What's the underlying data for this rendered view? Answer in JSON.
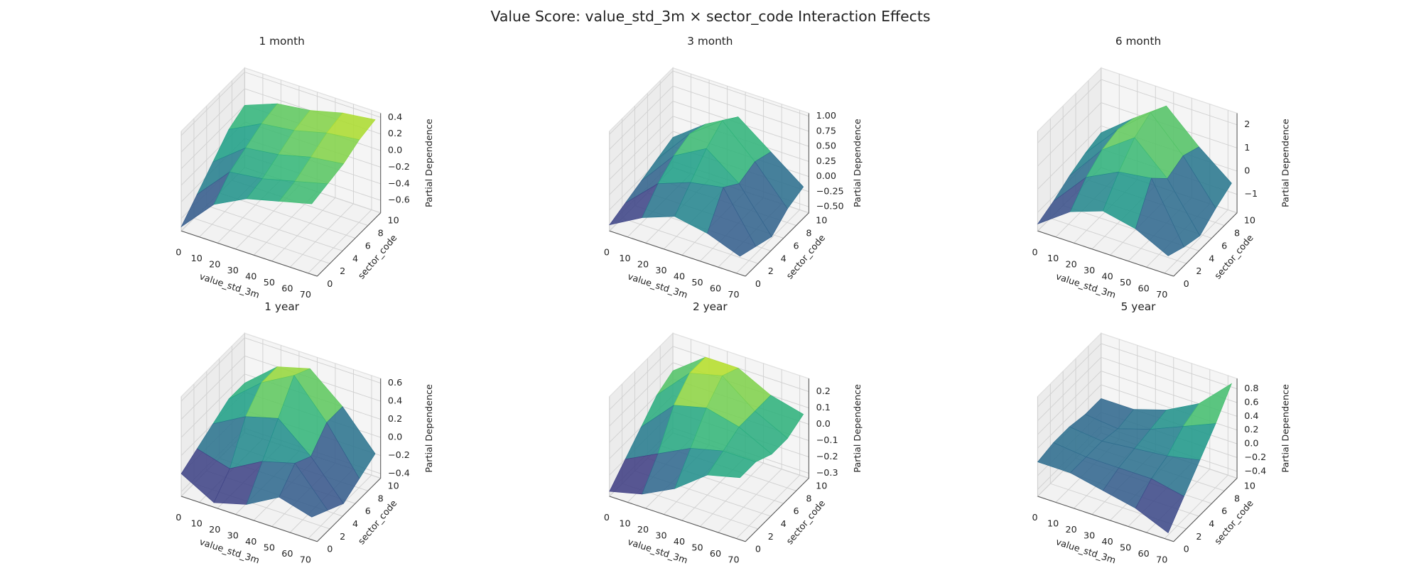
{
  "title": "Value Score: value_std_3m × sector_code Interaction Effects",
  "chart_data": [
    {
      "type": "surface3d",
      "title": "1 month",
      "xlabel": "value_std_3m",
      "ylabel": "sector_code",
      "zlabel": "Partial Dependence",
      "colormap": "viridis",
      "xlim": [
        0,
        75
      ],
      "ylim": [
        0,
        10
      ],
      "zlim": [
        -0.75,
        0.45
      ],
      "xticks": [
        0,
        10,
        20,
        30,
        40,
        50,
        60,
        70
      ],
      "yticks": [
        0,
        2,
        4,
        6,
        8,
        10
      ],
      "zticks": [
        {
          "value": -0.6,
          "label": "−0.6"
        },
        {
          "value": -0.4,
          "label": "−0.4"
        },
        {
          "value": -0.2,
          "label": "−0.2"
        },
        {
          "value": 0,
          "label": "0.0"
        },
        0.2,
        0.4
      ],
      "x": [
        0,
        18,
        36,
        54,
        72
      ],
      "y": [
        0,
        2.5,
        5,
        7.5,
        10
      ],
      "z": [
        [
          -0.7,
          -0.3,
          -0.1,
          0.0,
          0.1
        ],
        [
          -0.5,
          -0.1,
          -0.05,
          0.05,
          0.15
        ],
        [
          -0.3,
          0.0,
          0.05,
          0.15,
          0.2
        ],
        [
          -0.1,
          0.1,
          0.15,
          0.25,
          0.3
        ],
        [
          0.0,
          0.15,
          0.2,
          0.3,
          0.35
        ]
      ]
    },
    {
      "type": "surface3d",
      "title": "3 month",
      "xlabel": "value_std_3m",
      "ylabel": "sector_code",
      "zlabel": "Partial Dependence",
      "colormap": "viridis",
      "xlim": [
        0,
        75
      ],
      "ylim": [
        0,
        10
      ],
      "zlim": [
        -0.6,
        1.05
      ],
      "xticks": [
        0,
        10,
        20,
        30,
        40,
        50,
        60,
        70
      ],
      "yticks": [
        0,
        2,
        4,
        6,
        8,
        10
      ],
      "zticks": [
        {
          "value": -0.5,
          "label": "−0.50"
        },
        {
          "value": -0.25,
          "label": "−0.25"
        },
        {
          "value": 0,
          "label": "0.00"
        },
        0.25,
        {
          "value": 0.5,
          "label": "0.50"
        },
        0.75,
        {
          "value": 1,
          "label": "1.00"
        }
      ],
      "x": [
        0,
        18,
        36,
        54,
        72
      ],
      "y": [
        0,
        2.5,
        5,
        7.5,
        10
      ],
      "z": [
        [
          -0.5,
          -0.2,
          0.0,
          -0.1,
          -0.3
        ],
        [
          -0.4,
          0.1,
          0.3,
          0.4,
          -0.4
        ],
        [
          -0.3,
          0.3,
          0.6,
          0.2,
          -0.5
        ],
        [
          -0.2,
          0.4,
          0.8,
          0.3,
          -0.3
        ],
        [
          -0.1,
          0.3,
          0.6,
          0.2,
          -0.2
        ]
      ]
    },
    {
      "type": "surface3d",
      "title": "6 month",
      "xlabel": "value_std_3m",
      "ylabel": "sector_code",
      "zlabel": "Partial Dependence",
      "colormap": "viridis",
      "xlim": [
        0,
        75
      ],
      "ylim": [
        0,
        10
      ],
      "zlim": [
        -1.8,
        2.5
      ],
      "xticks": [
        0,
        10,
        20,
        30,
        40,
        50,
        60,
        70
      ],
      "yticks": [
        0,
        2,
        4,
        6,
        8,
        10
      ],
      "zticks": [
        {
          "value": -1,
          "label": "−1"
        },
        0,
        1,
        2
      ],
      "x": [
        0,
        18,
        36,
        54,
        72
      ],
      "y": [
        0,
        2.5,
        5,
        7.5,
        10
      ],
      "z": [
        [
          -1.5,
          -0.5,
          0.0,
          -0.3,
          -1.0
        ],
        [
          -1.2,
          0.3,
          1.0,
          1.2,
          -1.3
        ],
        [
          -0.8,
          0.8,
          1.8,
          0.5,
          -1.5
        ],
        [
          -0.5,
          1.0,
          2.2,
          0.8,
          -1.0
        ],
        [
          -0.3,
          0.8,
          1.8,
          0.5,
          -0.6
        ]
      ]
    },
    {
      "type": "surface3d",
      "title": "1 year",
      "xlabel": "value_std_3m",
      "ylabel": "sector_code",
      "zlabel": "Partial Dependence",
      "colormap": "viridis",
      "xlim": [
        0,
        75
      ],
      "ylim": [
        0,
        10
      ],
      "zlim": [
        -0.45,
        0.65
      ],
      "xticks": [
        0,
        10,
        20,
        30,
        40,
        50,
        60,
        70
      ],
      "yticks": [
        0,
        2,
        4,
        6,
        8,
        10
      ],
      "zticks": [
        {
          "value": -0.4,
          "label": "−0.4"
        },
        {
          "value": -0.2,
          "label": "−0.2"
        },
        {
          "value": 0,
          "label": "0.0"
        },
        0.2,
        0.4,
        0.6
      ],
      "x": [
        0,
        18,
        36,
        54,
        72
      ],
      "y": [
        0,
        2.5,
        5,
        7.5,
        10
      ],
      "z": [
        [
          -0.2,
          -0.4,
          -0.3,
          -0.1,
          -0.2
        ],
        [
          -0.1,
          -0.2,
          0.0,
          0.1,
          -0.3
        ],
        [
          0.0,
          0.2,
          0.3,
          0.0,
          -0.4
        ],
        [
          0.1,
          0.4,
          0.6,
          0.2,
          -0.3
        ],
        [
          0.1,
          0.4,
          0.5,
          0.2,
          -0.2
        ]
      ]
    },
    {
      "type": "surface3d",
      "title": "2 year",
      "xlabel": "value_std_3m",
      "ylabel": "sector_code",
      "zlabel": "Partial Dependence",
      "colormap": "viridis",
      "xlim": [
        0,
        75
      ],
      "ylim": [
        0,
        10
      ],
      "zlim": [
        -0.33,
        0.28
      ],
      "xticks": [
        0,
        10,
        20,
        30,
        40,
        50,
        60,
        70
      ],
      "yticks": [
        0,
        2,
        4,
        6,
        8,
        10
      ],
      "zticks": [
        {
          "value": -0.3,
          "label": "−0.3"
        },
        {
          "value": -0.2,
          "label": "−0.2"
        },
        {
          "value": -0.1,
          "label": "−0.1"
        },
        {
          "value": 0,
          "label": "0.0"
        },
        0.1,
        0.2
      ],
      "x": [
        0,
        18,
        36,
        54,
        72
      ],
      "y": [
        0,
        2.5,
        5,
        7.5,
        10
      ],
      "z": [
        [
          -0.3,
          -0.25,
          -0.15,
          0.0,
          0.05
        ],
        [
          -0.2,
          -0.1,
          0.0,
          0.05,
          0.05
        ],
        [
          -0.1,
          0.1,
          0.15,
          0.1,
          0.0
        ],
        [
          0.0,
          0.2,
          0.25,
          0.1,
          0.0
        ],
        [
          0.05,
          0.2,
          0.2,
          0.1,
          0.05
        ]
      ]
    },
    {
      "type": "surface3d",
      "title": "5 year",
      "xlabel": "value_std_3m",
      "ylabel": "sector_code",
      "zlabel": "Partial Dependence",
      "colormap": "viridis",
      "xlim": [
        0,
        75
      ],
      "ylim": [
        0,
        10
      ],
      "zlim": [
        -0.5,
        0.95
      ],
      "xticks": [
        0,
        10,
        20,
        30,
        40,
        50,
        60,
        70
      ],
      "yticks": [
        0,
        2,
        4,
        6,
        8,
        10
      ],
      "zticks": [
        {
          "value": -0.4,
          "label": "−0.4"
        },
        {
          "value": -0.2,
          "label": "−0.2"
        },
        {
          "value": 0,
          "label": "0.0"
        },
        0.2,
        0.4,
        0.6,
        0.8
      ],
      "x": [
        0,
        18,
        36,
        54,
        72
      ],
      "y": [
        0,
        2.5,
        5,
        7.5,
        10
      ],
      "z": [
        [
          0.0,
          0.0,
          -0.1,
          -0.2,
          -0.4
        ],
        [
          0.05,
          0.0,
          0.0,
          0.0,
          -0.1
        ],
        [
          0.05,
          0.0,
          0.05,
          0.1,
          0.2
        ],
        [
          0.0,
          -0.05,
          0.1,
          0.3,
          0.5
        ],
        [
          0.0,
          0.0,
          0.15,
          0.4,
          0.85
        ]
      ]
    }
  ]
}
